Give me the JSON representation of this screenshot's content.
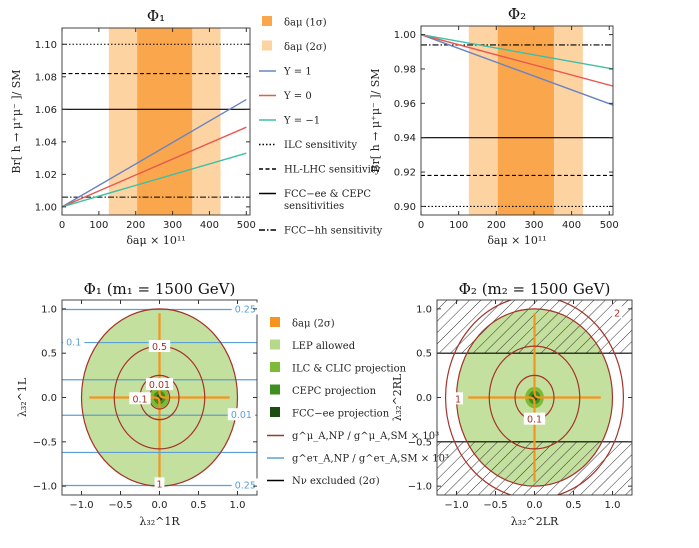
{
  "chart_data": [
    {
      "id": "p1",
      "type": "line",
      "title": "Φ₁",
      "xlabel": "δaμ × 10¹¹",
      "ylabel": "Br[ h → μ⁺μ⁻ ]/ SM",
      "xlim": [
        0,
        510
      ],
      "ylim": [
        0.995,
        1.11
      ],
      "xticks": [
        0,
        100,
        200,
        300,
        400,
        500
      ],
      "yticks": [
        1.0,
        1.02,
        1.04,
        1.06,
        1.08,
        1.1
      ],
      "ytick_labels": [
        "1.00",
        "1.02",
        "1.04",
        "1.06",
        "1.08",
        "1.10"
      ],
      "bands": [
        {
          "name": "δaμ (2σ)",
          "x": [
            127,
            430
          ],
          "color": "#fdd3a2"
        },
        {
          "name": "δaμ (1σ)",
          "x": [
            204,
            353
          ],
          "color": "#f9a64d"
        }
      ],
      "series": [
        {
          "name": "Y = 1",
          "color": "#6b84c0",
          "x": [
            0,
            500
          ],
          "y": [
            1.0,
            1.066
          ]
        },
        {
          "name": "Y = 0",
          "color": "#e8584f",
          "x": [
            0,
            500
          ],
          "y": [
            1.0,
            1.049
          ]
        },
        {
          "name": "Y = −1",
          "color": "#3dbfa6",
          "x": [
            0,
            500
          ],
          "y": [
            1.0,
            1.033
          ]
        }
      ],
      "hlines": [
        {
          "name": "ILC sensitivity",
          "y": 1.1,
          "dash": "1.5,2"
        },
        {
          "name": "HL-LHC sensitivity",
          "y": 1.082,
          "dash": "4,2.5"
        },
        {
          "name": "FCC-ee & CEPC sensitivities",
          "y": 1.06,
          "dash": ""
        },
        {
          "name": "FCC-hh sensitivity",
          "y": 1.006,
          "dash": "6,2,1.5,2"
        }
      ]
    },
    {
      "id": "p2",
      "type": "line",
      "title": "Φ₂",
      "xlabel": "δaμ × 10¹¹",
      "ylabel": "Br[ h → μ⁺μ⁻ ]/ SM",
      "xlim": [
        0,
        510
      ],
      "ylim": [
        0.895,
        1.005
      ],
      "xticks": [
        0,
        100,
        200,
        300,
        400,
        500
      ],
      "yticks": [
        0.9,
        0.92,
        0.94,
        0.96,
        0.98,
        1.0
      ],
      "ytick_labels": [
        "0.90",
        "0.92",
        "0.94",
        "0.96",
        "0.98",
        "1.00"
      ],
      "bands": [
        {
          "name": "δaμ (2σ)",
          "x": [
            127,
            430
          ],
          "color": "#fdd3a2"
        },
        {
          "name": "δaμ (1σ)",
          "x": [
            204,
            353
          ],
          "color": "#f9a64d"
        }
      ],
      "series": [
        {
          "name": "Y = 1",
          "color": "#6b84c0",
          "x": [
            0,
            510
          ],
          "y": [
            1.0,
            0.959
          ]
        },
        {
          "name": "Y = 0",
          "color": "#e8584f",
          "x": [
            0,
            510
          ],
          "y": [
            1.0,
            0.97
          ]
        },
        {
          "name": "Y = −1",
          "color": "#3dbfa6",
          "x": [
            0,
            510
          ],
          "y": [
            1.0,
            0.98
          ]
        }
      ],
      "hlines": [
        {
          "name": "ILC sensitivity",
          "y": 0.9,
          "dash": "1.5,2"
        },
        {
          "name": "HL-LHC sensitivity",
          "y": 0.918,
          "dash": "4,2.5"
        },
        {
          "name": "FCC-ee & CEPC sensitivities",
          "y": 0.94,
          "dash": ""
        },
        {
          "name": "FCC-hh sensitivity",
          "y": 0.994,
          "dash": "6,2,1.5,2"
        }
      ]
    },
    {
      "id": "p3",
      "type": "contour",
      "title": "Φ₁ (m₁ = 1500 GeV)",
      "xlabel": "λ₃₂^1R",
      "ylabel": "λ₃₂^1L",
      "xlim": [
        -1.25,
        1.25
      ],
      "ylim": [
        -1.1,
        1.1
      ],
      "xticks": [
        -1.0,
        -0.5,
        0.0,
        0.5,
        1.0
      ],
      "yticks": [
        -1.0,
        -0.5,
        0.0,
        0.5,
        1.0
      ],
      "xtick_labels": [
        "−1.0",
        "−0.5",
        "0.0",
        "0.5",
        "1.0"
      ],
      "ytick_labels": [
        "−1.0",
        "−0.5",
        "0.0",
        "0.5",
        "1.0"
      ],
      "regions": {
        "lep_allowed_radius": 1.0,
        "ilc_clic_radius": 0.12,
        "cepc_radius": 0.075,
        "fccee_radius": 0.04
      },
      "red_contours": [
        {
          "r": 1.0,
          "label": "1"
        },
        {
          "r": 0.58,
          "label": "0.5"
        },
        {
          "r": 0.25,
          "label": "0.1"
        },
        {
          "r": 0.13,
          "label": "0.01"
        }
      ],
      "blue_contours": [
        {
          "y": [
            -0.993,
            0.993
          ],
          "label": "0.25"
        },
        {
          "y": [
            -0.62,
            0.62
          ],
          "label": "0.1"
        },
        {
          "y": [
            -0.2,
            0.2
          ],
          "label": "0.01"
        }
      ]
    },
    {
      "id": "p4",
      "type": "contour",
      "title": "Φ₂ (m₂ = 1500 GeV)",
      "xlabel": "λ₃₂^2LR",
      "ylabel": "λ₃₂^2RL",
      "xlim": [
        -1.25,
        1.25
      ],
      "ylim": [
        -1.1,
        1.1
      ],
      "xticks": [
        -1.0,
        -0.5,
        0.0,
        0.5,
        1.0
      ],
      "yticks": [
        -1.0,
        -0.5,
        0.0,
        0.5,
        1.0
      ],
      "xtick_labels": [
        "−1.0",
        "−0.5",
        "0.0",
        "0.5",
        "1.0"
      ],
      "ytick_labels": [
        "−1.0",
        "−0.5",
        "0.0",
        "0.5",
        "1.0"
      ],
      "excluded_abs_y_above": 0.5,
      "regions": {
        "lep_allowed_radius": 1.0,
        "ilc_clic_radius": 0.12,
        "cepc_radius": 0.075,
        "fccee_radius": 0.04
      },
      "red_contours": [
        {
          "r": 1.14,
          "label": "2"
        },
        {
          "r": 1.0,
          "label": "1"
        },
        {
          "r": 0.58,
          "label": ""
        },
        {
          "r": 0.25,
          "label": "0.1"
        }
      ]
    }
  ],
  "legend_top": [
    {
      "kind": "swatch",
      "color": "#f9a64d",
      "label": "δaμ (1σ)"
    },
    {
      "kind": "swatch",
      "color": "#fdd3a2",
      "label": "δaμ (2σ)"
    },
    {
      "kind": "line",
      "color": "#6b84c0",
      "dash": "",
      "label": "Y = 1"
    },
    {
      "kind": "line",
      "color": "#e8584f",
      "dash": "",
      "label": "Y = 0"
    },
    {
      "kind": "line",
      "color": "#3dbfa6",
      "dash": "",
      "label": "Y = −1"
    },
    {
      "kind": "line",
      "color": "#000000",
      "dash": "1.5,2",
      "label": "ILC sensitivity"
    },
    {
      "kind": "line",
      "color": "#000000",
      "dash": "4,2.5",
      "label": "HL-LHC sensitivity"
    },
    {
      "kind": "line",
      "color": "#000000",
      "dash": "",
      "label": "FCC−ee & CEPC",
      "label2": "sensitivities"
    },
    {
      "kind": "line",
      "color": "#000000",
      "dash": "6,2,1.5,2",
      "label": "FCC−hh sensitivity"
    }
  ],
  "legend_bottom": [
    {
      "kind": "swatch",
      "color": "#f7941d",
      "label": "δaμ (2σ)"
    },
    {
      "kind": "swatch",
      "color": "#b5d98a",
      "label": "LEP allowed"
    },
    {
      "kind": "swatch",
      "color": "#7dba38",
      "label": "ILC & CLIC projection"
    },
    {
      "kind": "swatch",
      "color": "#3f8f1f",
      "label": "CEPC projection"
    },
    {
      "kind": "swatch",
      "color": "#1d4d10",
      "label": "FCC−ee projection"
    },
    {
      "kind": "line",
      "color": "#a4342a",
      "dash": "",
      "label": "g^μ_A,NP / g^μ_A,SM × 10³"
    },
    {
      "kind": "line",
      "color": "#5aa0d6",
      "dash": "",
      "label": "g^eτ_A,NP / g^eτ_A,SM × 10³"
    },
    {
      "kind": "line",
      "color": "#000000",
      "dash": "",
      "label": "Nν excluded (2σ)"
    }
  ]
}
